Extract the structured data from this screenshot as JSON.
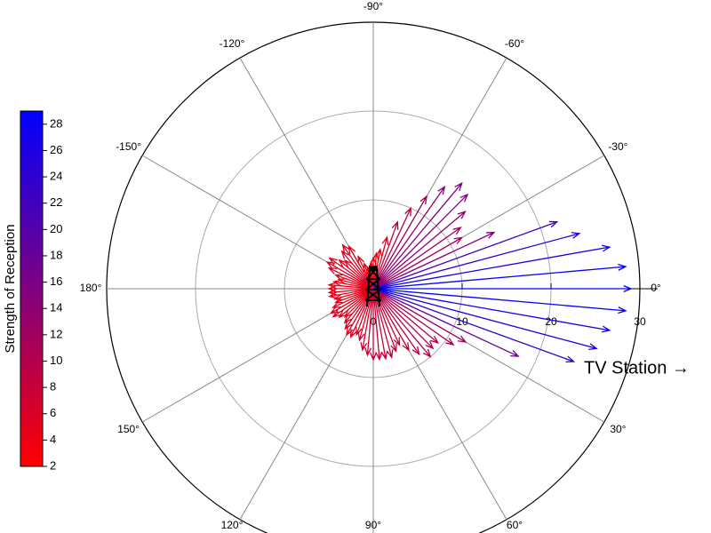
{
  "chart_data": {
    "type": "polar_vector",
    "colorbar_title": "Strength of Reception",
    "annotation": "TV Station →",
    "colormap": [
      "#ff0000",
      "#0000ff"
    ],
    "clim": [
      2,
      29
    ],
    "cticks": [
      2,
      4,
      6,
      8,
      10,
      12,
      14,
      16,
      18,
      20,
      22,
      24,
      26,
      28
    ],
    "rlim": [
      0,
      30
    ],
    "rticks": [
      0,
      10,
      20,
      30
    ],
    "thetaticks": [
      {
        "value": -150,
        "label": "-150°"
      },
      {
        "value": -120,
        "label": "-120°"
      },
      {
        "value": -90,
        "label": "-90°"
      },
      {
        "value": -60,
        "label": "-60°"
      },
      {
        "value": -30,
        "label": "-30°"
      },
      {
        "value": 0,
        "label": "0°"
      },
      {
        "value": 30,
        "label": "30°"
      },
      {
        "value": 60,
        "label": "60°"
      },
      {
        "value": 90,
        "label": "90°"
      },
      {
        "value": 120,
        "label": "120°"
      },
      {
        "value": 150,
        "label": "150°"
      },
      {
        "value": 180,
        "label": "180°"
      }
    ],
    "angles": [
      -180,
      -175,
      -170,
      -165,
      -160,
      -155,
      -150,
      -145,
      -140,
      -135,
      -130,
      -125,
      -120,
      -115,
      -110,
      -105,
      -100,
      -95,
      -90,
      -85,
      -80,
      -75,
      -70,
      -65,
      -60,
      -55,
      -50,
      -45,
      -40,
      -35,
      -30,
      -25,
      -20,
      -15,
      -10,
      -5,
      0,
      5,
      10,
      15,
      20,
      25,
      30,
      35,
      40,
      45,
      50,
      55,
      60,
      65,
      70,
      75,
      80,
      85,
      90,
      95,
      100,
      105,
      110,
      115,
      120,
      125,
      130,
      135,
      140,
      145,
      150,
      155,
      160,
      165,
      170,
      175
    ],
    "values": [
      5,
      5,
      4.5,
      4,
      4.5,
      5.5,
      6,
      6,
      5,
      4.5,
      5.5,
      6,
      5.5,
      4,
      3,
      2.5,
      2.5,
      3,
      3.5,
      4,
      4.5,
      6,
      8,
      10,
      12,
      14,
      15.5,
      15,
      13.5,
      12,
      11.5,
      15,
      22,
      24,
      27,
      28.5,
      29,
      28.5,
      27,
      26,
      24,
      18,
      12,
      11,
      9.5,
      9.5,
      10,
      9,
      8,
      7,
      7.5,
      8,
      8,
      8,
      8,
      7.5,
      7,
      6,
      5.5,
      6,
      6,
      5.5,
      5,
      4.5,
      5,
      5.5,
      5.5,
      5,
      4.5,
      4.5,
      5,
      5
    ]
  }
}
